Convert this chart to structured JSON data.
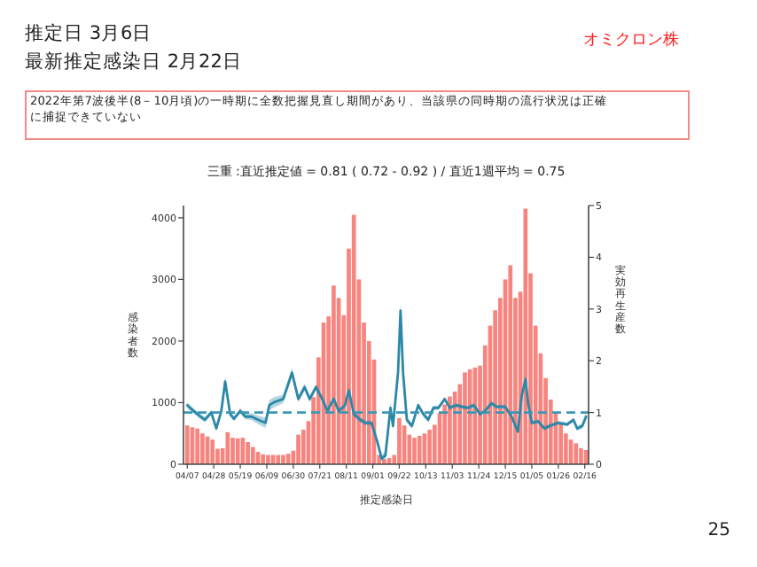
{
  "chart_data": {
    "type": "bar",
    "title": "三重 :直近推定値 = 0.81 ( 0.72 - 0.92 ) / 直近1週平均 = 0.75",
    "xlabel": "推定感染日",
    "ylabel": "感染者数",
    "y2label": "実効再生産数",
    "annotations": [
      "推定日  3月6日",
      "最新推定感染日  2月22日",
      "オミクロン株",
      "2022年第7波後半(8－10月頃)の一時期に全数把握見直し期間があり、当該県の同時期の流行状況は正確に捕捉できていない",
      "25"
    ],
    "xlim": [
      "2022-04-04",
      "2023-02-19"
    ],
    "xticks": [
      {
        "value": "2022-04-07",
        "label": "04/07"
      },
      {
        "value": "2022-04-28",
        "label": "04/28"
      },
      {
        "value": "2022-05-19",
        "label": "05/19"
      },
      {
        "value": "2022-06-09",
        "label": "06/09"
      },
      {
        "value": "2022-06-30",
        "label": "06/30"
      },
      {
        "value": "2022-07-21",
        "label": "07/21"
      },
      {
        "value": "2022-08-11",
        "label": "08/11"
      },
      {
        "value": "2022-09-01",
        "label": "09/01"
      },
      {
        "value": "2022-09-22",
        "label": "09/22"
      },
      {
        "value": "2022-10-13",
        "label": "10/13"
      },
      {
        "value": "2022-11-03",
        "label": "11/03"
      },
      {
        "value": "2022-11-24",
        "label": "11/24"
      },
      {
        "value": "2022-12-15",
        "label": "12/15"
      },
      {
        "value": "2023-01-05",
        "label": "01/05"
      },
      {
        "value": "2023-01-26",
        "label": "01/26"
      },
      {
        "value": "2023-02-16",
        "label": "02/16"
      }
    ],
    "ylim": [
      0,
      4200
    ],
    "yticks": [
      0,
      1000,
      2000,
      3000,
      4000
    ],
    "y2lim": [
      0,
      5
    ],
    "y2ticks": [
      0,
      1,
      2,
      3,
      4,
      5
    ],
    "grid": false,
    "ref_lines": [
      {
        "axis": "y2",
        "value": 1,
        "color": "#3a97b5",
        "line_style": "dashed"
      }
    ],
    "series": [
      {
        "color": "#f7847e",
        "x": [
          "2022-04-07",
          "2022-04-11",
          "2022-04-15",
          "2022-04-19",
          "2022-04-23",
          "2022-04-27",
          "2022-05-01",
          "2022-05-05",
          "2022-05-09",
          "2022-05-13",
          "2022-05-17",
          "2022-05-21",
          "2022-05-25",
          "2022-05-29",
          "2022-06-02",
          "2022-06-06",
          "2022-06-10",
          "2022-06-14",
          "2022-06-18",
          "2022-06-22",
          "2022-06-26",
          "2022-06-30",
          "2022-07-04",
          "2022-07-08",
          "2022-07-12",
          "2022-07-16",
          "2022-07-20",
          "2022-07-24",
          "2022-07-28",
          "2022-08-01",
          "2022-08-05",
          "2022-08-09",
          "2022-08-13",
          "2022-08-17",
          "2022-08-21",
          "2022-08-25",
          "2022-08-29",
          "2022-09-02",
          "2022-09-06",
          "2022-09-10",
          "2022-09-14",
          "2022-09-18",
          "2022-09-22",
          "2022-09-26",
          "2022-09-30",
          "2022-10-04",
          "2022-10-08",
          "2022-10-12",
          "2022-10-16",
          "2022-10-20",
          "2022-10-24",
          "2022-10-28",
          "2022-11-01",
          "2022-11-05",
          "2022-11-09",
          "2022-11-13",
          "2022-11-17",
          "2022-11-21",
          "2022-11-25",
          "2022-11-29",
          "2022-12-03",
          "2022-12-07",
          "2022-12-11",
          "2022-12-15",
          "2022-12-19",
          "2022-12-23",
          "2022-12-27",
          "2022-12-31",
          "2023-01-04",
          "2023-01-08",
          "2023-01-12",
          "2023-01-16",
          "2023-01-20",
          "2023-01-24",
          "2023-01-28",
          "2023-02-01",
          "2023-02-05",
          "2023-02-09",
          "2023-02-13",
          "2023-02-17"
        ],
        "values": [
          630,
          600,
          580,
          500,
          450,
          400,
          250,
          260,
          520,
          430,
          420,
          430,
          360,
          280,
          200,
          160,
          150,
          150,
          150,
          150,
          170,
          220,
          480,
          560,
          700,
          1090,
          1735,
          2300,
          2400,
          2900,
          2700,
          2420,
          3500,
          4050,
          3000,
          2300,
          2000,
          1700,
          150,
          80,
          100,
          150,
          750,
          630,
          480,
          430,
          460,
          500,
          560,
          640,
          830,
          970,
          1100,
          1180,
          1300,
          1490,
          1540,
          1570,
          1600,
          1930,
          2250,
          2500,
          2700,
          3000,
          3230,
          2700,
          2800,
          4150,
          3100,
          2250,
          1800,
          1400,
          1050,
          820,
          650,
          500,
          400,
          340,
          260,
          230
        ]
      },
      {
        "type": "line",
        "axis": "y2",
        "color": "#2b88a8",
        "x": [
          "2022-04-07",
          "2022-04-12",
          "2022-04-16",
          "2022-04-21",
          "2022-04-26",
          "2022-04-30",
          "2022-05-04",
          "2022-05-07",
          "2022-05-11",
          "2022-05-14",
          "2022-05-19",
          "2022-05-23",
          "2022-05-28",
          "2022-06-02",
          "2022-06-08",
          "2022-06-11",
          "2022-06-15",
          "2022-06-22",
          "2022-06-29",
          "2022-07-04",
          "2022-07-09",
          "2022-07-13",
          "2022-07-18",
          "2022-07-23",
          "2022-07-27",
          "2022-08-01",
          "2022-08-05",
          "2022-08-10",
          "2022-08-13",
          "2022-08-17",
          "2022-08-22",
          "2022-08-26",
          "2022-08-31",
          "2022-09-05",
          "2022-09-08",
          "2022-09-11",
          "2022-09-15",
          "2022-09-17",
          "2022-09-21",
          "2022-09-23",
          "2022-09-25",
          "2022-09-28",
          "2022-10-02",
          "2022-10-07",
          "2022-10-11",
          "2022-10-15",
          "2022-10-19",
          "2022-10-23",
          "2022-10-28",
          "2022-11-01",
          "2022-11-06",
          "2022-11-11",
          "2022-11-15",
          "2022-11-20",
          "2022-11-25",
          "2022-11-29",
          "2022-12-04",
          "2022-12-08",
          "2022-12-15",
          "2022-12-20",
          "2022-12-25",
          "2022-12-28",
          "2022-12-31",
          "2023-01-02",
          "2023-01-05",
          "2023-01-10",
          "2023-01-15",
          "2023-01-19",
          "2023-01-26",
          "2023-02-02",
          "2023-02-07",
          "2023-02-10",
          "2023-02-14",
          "2023-02-17"
        ],
        "values": [
          1.14,
          1.03,
          0.95,
          0.86,
          1.0,
          0.69,
          1.03,
          1.6,
          0.97,
          0.88,
          1.03,
          0.92,
          0.92,
          0.86,
          0.8,
          1.14,
          1.2,
          1.26,
          1.77,
          1.26,
          1.49,
          1.26,
          1.49,
          1.26,
          1.03,
          1.26,
          1.03,
          1.14,
          1.43,
          0.97,
          0.86,
          0.8,
          0.8,
          0.4,
          0.11,
          0.17,
          1.09,
          0.74,
          1.77,
          2.97,
          1.77,
          0.86,
          0.74,
          1.14,
          0.97,
          0.86,
          1.09,
          1.09,
          1.26,
          1.09,
          1.14,
          1.11,
          1.09,
          1.14,
          0.97,
          1.03,
          1.18,
          1.11,
          1.11,
          0.92,
          0.63,
          1.32,
          1.64,
          1.2,
          0.8,
          0.83,
          0.69,
          0.74,
          0.8,
          0.77,
          0.86,
          0.69,
          0.74,
          0.92
        ],
        "lower": [
          1.08,
          0.98,
          0.9,
          0.81,
          0.95,
          0.64,
          0.98,
          1.5,
          0.92,
          0.83,
          0.98,
          0.87,
          0.85,
          0.78,
          0.7,
          1.04,
          1.1,
          1.18,
          1.67,
          1.2,
          1.42,
          1.2,
          1.43,
          1.2,
          0.98,
          1.21,
          0.98,
          1.09,
          1.38,
          0.92,
          0.81,
          0.75,
          0.75,
          0.34,
          0.05,
          0.08,
          0.98,
          0.66,
          1.65,
          2.8,
          1.65,
          0.8,
          0.69,
          1.09,
          0.92,
          0.81,
          1.04,
          1.05,
          1.22,
          1.05,
          1.1,
          1.07,
          1.05,
          1.1,
          0.93,
          0.99,
          1.14,
          1.07,
          1.07,
          0.88,
          0.59,
          1.26,
          1.55,
          1.15,
          0.76,
          0.79,
          0.65,
          0.7,
          0.76,
          0.73,
          0.82,
          0.65,
          0.69,
          0.85
        ],
        "upper": [
          1.2,
          1.08,
          1.0,
          0.91,
          1.05,
          0.74,
          1.08,
          1.7,
          1.02,
          0.93,
          1.08,
          0.97,
          0.99,
          0.94,
          0.9,
          1.24,
          1.3,
          1.34,
          1.87,
          1.32,
          1.56,
          1.32,
          1.55,
          1.32,
          1.08,
          1.31,
          1.08,
          1.19,
          1.48,
          1.02,
          0.91,
          0.85,
          0.85,
          0.46,
          0.17,
          0.26,
          1.2,
          0.82,
          1.89,
          3.14,
          1.89,
          0.92,
          0.79,
          1.19,
          1.02,
          0.91,
          1.14,
          1.13,
          1.3,
          1.13,
          1.18,
          1.15,
          1.13,
          1.18,
          1.01,
          1.07,
          1.22,
          1.15,
          1.15,
          0.96,
          0.67,
          1.38,
          1.73,
          1.25,
          0.84,
          0.87,
          0.73,
          0.78,
          0.84,
          0.81,
          0.9,
          0.73,
          0.79,
          0.99
        ]
      }
    ]
  }
}
